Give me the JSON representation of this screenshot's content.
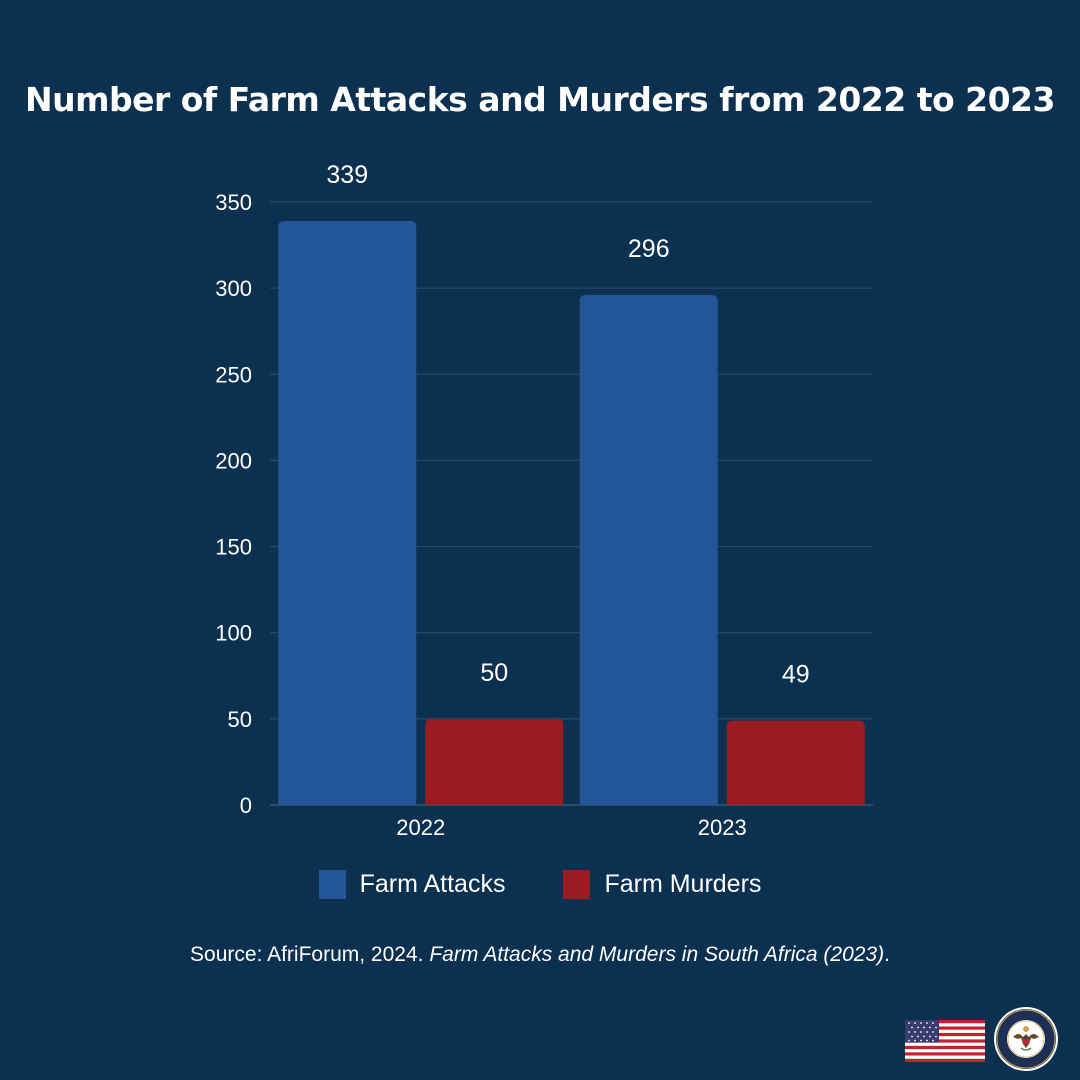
{
  "chart_data": {
    "type": "bar",
    "title": "Number of Farm Attacks and Murders from 2022 to 2023",
    "categories": [
      "2022",
      "2023"
    ],
    "series": [
      {
        "name": "Farm Attacks",
        "values": [
          339,
          296
        ],
        "color": "#235696"
      },
      {
        "name": "Farm Murders",
        "values": [
          50,
          49
        ],
        "color": "#981c21"
      }
    ],
    "xlabel": "",
    "ylabel": "",
    "ylim": [
      0,
      350
    ],
    "yticks": [
      0,
      50,
      100,
      150,
      200,
      250,
      300,
      350
    ],
    "grid": true,
    "legend_position": "bottom",
    "data_labels": true
  },
  "source": {
    "prefix": "Source: AfriForum, 2024. ",
    "title": "Farm Attacks and Murders in South Africa (2023)",
    "suffix": "."
  },
  "logos": {
    "flag": "us-flag-icon",
    "seal": "department-of-state-seal-icon",
    "seal_text": "DEPARTMENT OF STATE · UNITED STATES OF AMERICA"
  },
  "colors": {
    "background": "#0b3050",
    "text": "#ffffff",
    "grid": "#2c4f6e"
  }
}
